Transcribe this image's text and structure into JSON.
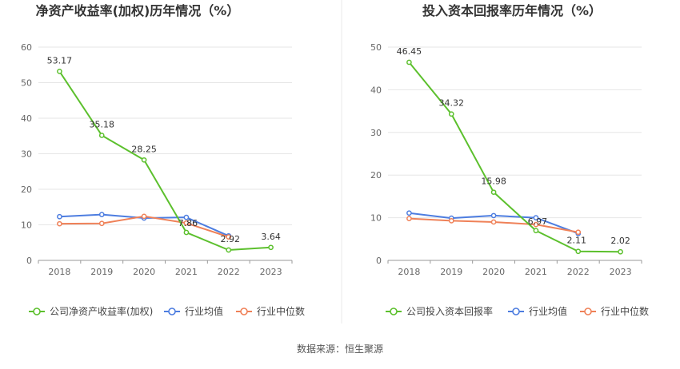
{
  "source": "数据来源：恒生聚源",
  "chart_data": [
    {
      "type": "line",
      "title": "净资产收益率(加权)历年情况（%）",
      "categories": [
        "2018",
        "2019",
        "2020",
        "2021",
        "2022",
        "2023"
      ],
      "ylim": [
        0,
        60
      ],
      "yticks": [
        0,
        10,
        20,
        30,
        40,
        50,
        60
      ],
      "grid": true,
      "legend_position": "bottom",
      "series": [
        {
          "name": "公司净资产收益率(加权)",
          "color": "#5cc02d",
          "values": [
            53.17,
            35.18,
            28.25,
            7.86,
            2.92,
            3.64
          ],
          "labels": [
            "53.17",
            "35.18",
            "28.25",
            "7.86",
            "2.92",
            "3.64"
          ]
        },
        {
          "name": "行业均值",
          "color": "#4d7de0",
          "values": [
            12.3,
            12.9,
            11.9,
            12.1,
            6.9,
            null
          ]
        },
        {
          "name": "行业中位数",
          "color": "#ef8158",
          "values": [
            10.3,
            10.4,
            12.4,
            10.5,
            6.6,
            null
          ]
        }
      ]
    },
    {
      "type": "line",
      "title": "投入资本回报率历年情况（%）",
      "categories": [
        "2018",
        "2019",
        "2020",
        "2021",
        "2022",
        "2023"
      ],
      "ylim": [
        0,
        50
      ],
      "yticks": [
        0,
        10,
        20,
        30,
        40,
        50
      ],
      "grid": true,
      "legend_position": "bottom",
      "series": [
        {
          "name": "公司投入资本回报率",
          "color": "#5cc02d",
          "values": [
            46.45,
            34.32,
            15.98,
            6.97,
            2.11,
            2.02
          ],
          "labels": [
            "46.45",
            "34.32",
            "15.98",
            "6.97",
            "2.11",
            "2.02"
          ]
        },
        {
          "name": "行业均值",
          "color": "#4d7de0",
          "values": [
            11.1,
            9.9,
            10.5,
            10.0,
            6.3,
            null
          ]
        },
        {
          "name": "行业中位数",
          "color": "#ef8158",
          "values": [
            9.8,
            9.3,
            9.0,
            8.4,
            6.6,
            null
          ]
        }
      ]
    }
  ]
}
